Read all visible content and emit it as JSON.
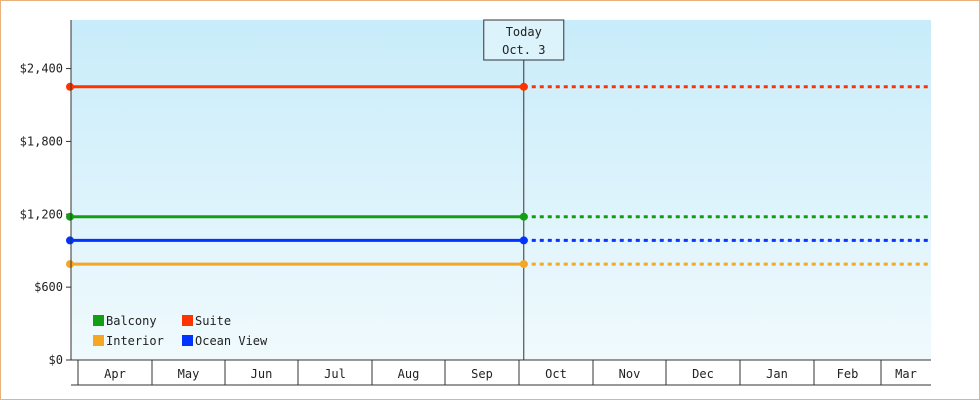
{
  "chart_data": {
    "type": "line",
    "title": "",
    "xlabel": "",
    "ylabel": "",
    "categories": [
      "Apr",
      "May",
      "Jun",
      "Jul",
      "Aug",
      "Sep",
      "Oct",
      "Nov",
      "Dec",
      "Jan",
      "Feb",
      "Mar"
    ],
    "ylim": [
      0,
      2800
    ],
    "y_ticks": [
      0,
      600,
      1200,
      1800,
      2400
    ],
    "y_tick_labels": [
      "$0",
      "$600",
      "$1,200",
      "$1,800",
      "$2,400"
    ],
    "grid": false,
    "legend_position": "bottom-left",
    "today_marker": {
      "line1": "Today",
      "line2": "Oct. 3",
      "month": "Oct",
      "day": 3
    },
    "series": [
      {
        "name": "Balcony",
        "color": "#12a012",
        "value": 1180,
        "start_month": "Apr",
        "start_day": 1
      },
      {
        "name": "Suite",
        "color": "#ff3300",
        "value": 2250,
        "start_month": "Apr",
        "start_day": 1
      },
      {
        "name": "Interior",
        "color": "#f5a623",
        "value": 790,
        "start_month": "Apr",
        "start_day": 1
      },
      {
        "name": "Ocean View",
        "color": "#0033ff",
        "value": 985,
        "start_month": "Apr",
        "start_day": 1
      }
    ]
  }
}
